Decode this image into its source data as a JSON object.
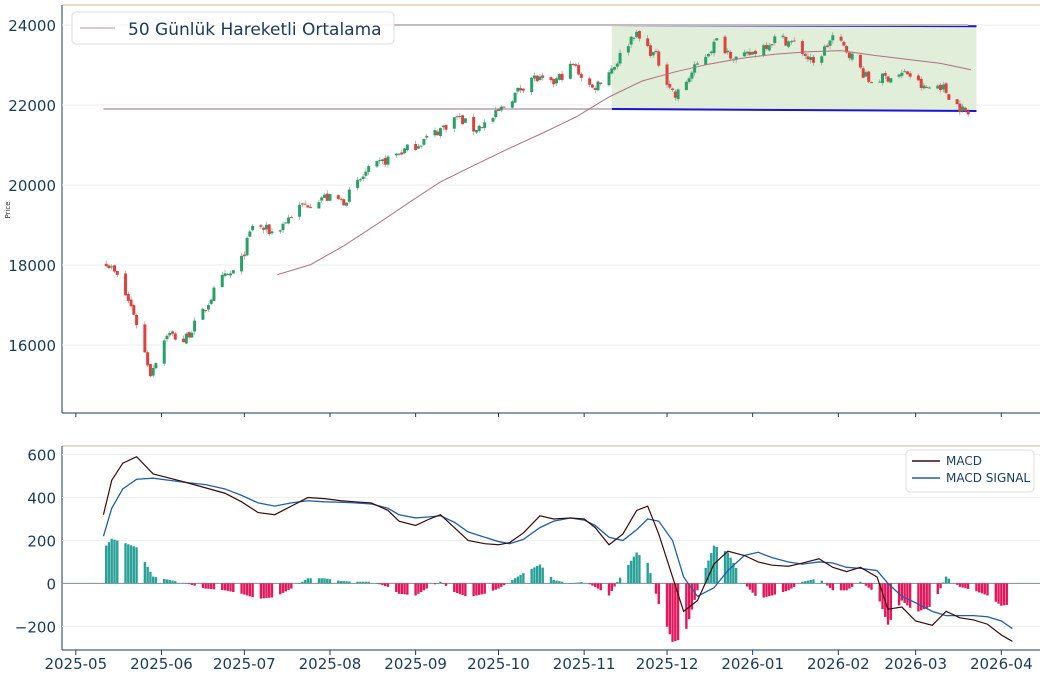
{
  "chart_data": [
    {
      "type": "candlestick",
      "ylabel": "Price",
      "ylim": [
        14300,
        24500
      ],
      "yticks": [
        16000,
        18000,
        20000,
        22000,
        24000
      ],
      "legend": {
        "placement": "top-left",
        "entries": [
          "50 Günlük Hareketli Ortalama"
        ]
      },
      "colors": {
        "up": "#26a269",
        "down": "#e0403e",
        "ma": "#b07080",
        "hlines": "#c9b8be",
        "channel": "#1a14d6",
        "channel_fill": "#dcebd3"
      },
      "series": [
        {
          "name": "50 Günlük Hareketli Ortalama",
          "role": "moving-average",
          "points": [
            [
              "2025-07-13",
              17760
            ],
            [
              "2025-07-25",
              18010
            ],
            [
              "2025-08-06",
              18480
            ],
            [
              "2025-08-18",
              19020
            ],
            [
              "2025-08-30",
              19580
            ],
            [
              "2025-09-10",
              20080
            ],
            [
              "2025-09-23",
              20520
            ],
            [
              "2025-10-05",
              20920
            ],
            [
              "2025-10-17",
              21300
            ],
            [
              "2025-10-29",
              21700
            ],
            [
              "2025-11-10",
              22200
            ],
            [
              "2025-11-22",
              22600
            ],
            [
              "2025-12-04",
              22830
            ],
            [
              "2025-12-16",
              23020
            ],
            [
              "2025-12-28",
              23170
            ],
            [
              "2026-01-09",
              23270
            ],
            [
              "2026-01-21",
              23330
            ],
            [
              "2026-02-02",
              23360
            ],
            [
              "2026-02-14",
              23240
            ],
            [
              "2026-02-26",
              23140
            ],
            [
              "2026-03-10",
              23040
            ],
            [
              "2026-03-21",
              22880
            ]
          ]
        },
        {
          "name": "horizontal-level-upper",
          "role": "hline",
          "y": 24000,
          "x_range": [
            "2025-05-11",
            "2026-03-20"
          ]
        },
        {
          "name": "horizontal-level-lower",
          "role": "hline",
          "y": 21900,
          "x_range": [
            "2025-05-11",
            "2025-11-11"
          ]
        }
      ],
      "channel": {
        "x_range": [
          "2025-11-11",
          "2026-03-23"
        ],
        "upper": [
          24000,
          23970
        ],
        "lower": [
          21900,
          21850
        ]
      },
      "anchors": [
        [
          "2025-05-11",
          18200
        ],
        [
          "2025-05-16",
          17700
        ],
        [
          "2025-05-22",
          16800
        ],
        [
          "2025-05-28",
          15300
        ],
        [
          "2025-06-03",
          16300
        ],
        [
          "2025-06-09",
          16100
        ],
        [
          "2025-06-16",
          16800
        ],
        [
          "2025-06-22",
          17600
        ],
        [
          "2025-06-29",
          17900
        ],
        [
          "2025-07-04",
          19000
        ],
        [
          "2025-07-12",
          18800
        ],
        [
          "2025-07-20",
          19400
        ],
        [
          "2025-07-29",
          19700
        ],
        [
          "2025-08-06",
          19600
        ],
        [
          "2025-08-14",
          20300
        ],
        [
          "2025-08-23",
          20700
        ],
        [
          "2025-09-01",
          21000
        ],
        [
          "2025-09-08",
          21300
        ],
        [
          "2025-09-16",
          21700
        ],
        [
          "2025-09-22",
          21400
        ],
        [
          "2025-09-28",
          21600
        ],
        [
          "2025-10-06",
          22200
        ],
        [
          "2025-10-13",
          22700
        ],
        [
          "2025-10-20",
          22500
        ],
        [
          "2025-10-28",
          23000
        ],
        [
          "2025-11-04",
          22400
        ],
        [
          "2025-11-12",
          23000
        ],
        [
          "2025-11-19",
          23800
        ],
        [
          "2025-11-27",
          23200
        ],
        [
          "2025-12-04",
          22200
        ],
        [
          "2025-12-12",
          23000
        ],
        [
          "2025-12-19",
          23600
        ],
        [
          "2025-12-27",
          23100
        ],
        [
          "2026-01-03",
          23400
        ],
        [
          "2026-01-10",
          23700
        ],
        [
          "2026-01-17",
          23500
        ],
        [
          "2026-01-23",
          23000
        ],
        [
          "2026-01-30",
          23700
        ],
        [
          "2026-02-05",
          23300
        ],
        [
          "2026-02-12",
          22600
        ],
        [
          "2026-02-19",
          22700
        ],
        [
          "2026-02-26",
          22800
        ],
        [
          "2026-03-04",
          22400
        ],
        [
          "2026-03-10",
          22500
        ],
        [
          "2026-03-16",
          22000
        ],
        [
          "2026-03-21",
          21700
        ]
      ]
    },
    {
      "type": "line",
      "ylim": [
        -310,
        640
      ],
      "yticks": [
        -200,
        0,
        200,
        400,
        600
      ],
      "xticks": [
        "2025-05",
        "2025-06",
        "2025-07",
        "2025-08",
        "2025-09",
        "2025-10",
        "2025-11",
        "2025-12",
        "2026-01",
        "2026-02",
        "2026-03",
        "2026-04"
      ],
      "legend": {
        "placement": "top-right",
        "entries": [
          "MACD",
          "MACD SIGNAL"
        ]
      },
      "colors": {
        "macd": "#3a0a08",
        "signal": "#1f5fae",
        "hist_pos": "#2aa198",
        "hist_neg": "#e0185c",
        "zero": "#7f8c8d"
      },
      "series": [
        {
          "name": "MACD",
          "points": [
            [
              "2025-05-11",
              320
            ],
            [
              "2025-05-14",
              480
            ],
            [
              "2025-05-18",
              560
            ],
            [
              "2025-05-23",
              590
            ],
            [
              "2025-05-29",
              510
            ],
            [
              "2025-06-04",
              490
            ],
            [
              "2025-06-10",
              470
            ],
            [
              "2025-06-17",
              445
            ],
            [
              "2025-06-24",
              420
            ],
            [
              "2025-06-30",
              380
            ],
            [
              "2025-07-06",
              330
            ],
            [
              "2025-07-12",
              320
            ],
            [
              "2025-07-18",
              360
            ],
            [
              "2025-07-24",
              400
            ],
            [
              "2025-07-30",
              395
            ],
            [
              "2025-08-05",
              385
            ],
            [
              "2025-08-10",
              380
            ],
            [
              "2025-08-16",
              375
            ],
            [
              "2025-08-22",
              340
            ],
            [
              "2025-08-26",
              290
            ],
            [
              "2025-09-01",
              270
            ],
            [
              "2025-09-06",
              300
            ],
            [
              "2025-09-10",
              320
            ],
            [
              "2025-09-15",
              260
            ],
            [
              "2025-09-20",
              200
            ],
            [
              "2025-09-26",
              185
            ],
            [
              "2025-10-01",
              180
            ],
            [
              "2025-10-05",
              190
            ],
            [
              "2025-10-10",
              235
            ],
            [
              "2025-10-16",
              315
            ],
            [
              "2025-10-21",
              300
            ],
            [
              "2025-10-27",
              305
            ],
            [
              "2025-11-01",
              300
            ],
            [
              "2025-11-05",
              260
            ],
            [
              "2025-11-10",
              180
            ],
            [
              "2025-11-15",
              230
            ],
            [
              "2025-11-20",
              340
            ],
            [
              "2025-11-24",
              360
            ],
            [
              "2025-11-28",
              230
            ],
            [
              "2025-12-03",
              30
            ],
            [
              "2025-12-07",
              -130
            ],
            [
              "2025-12-12",
              -80
            ],
            [
              "2025-12-18",
              90
            ],
            [
              "2025-12-23",
              150
            ],
            [
              "2025-12-29",
              130
            ],
            [
              "2026-01-03",
              100
            ],
            [
              "2026-01-08",
              85
            ],
            [
              "2026-01-14",
              80
            ],
            [
              "2026-01-19",
              95
            ],
            [
              "2026-01-25",
              115
            ],
            [
              "2026-01-30",
              75
            ],
            [
              "2026-02-04",
              55
            ],
            [
              "2026-02-09",
              75
            ],
            [
              "2026-02-15",
              30
            ],
            [
              "2026-02-19",
              -120
            ],
            [
              "2026-02-24",
              -110
            ],
            [
              "2026-03-01",
              -175
            ],
            [
              "2026-03-07",
              -195
            ],
            [
              "2026-03-12",
              -130
            ],
            [
              "2026-03-17",
              -160
            ],
            [
              "2026-03-22",
              -170
            ],
            [
              "2026-03-27",
              -190
            ],
            [
              "2026-04-01",
              -240
            ],
            [
              "2026-04-05",
              -270
            ]
          ]
        },
        {
          "name": "MACD SIGNAL",
          "points": [
            [
              "2025-05-11",
              220
            ],
            [
              "2025-05-14",
              350
            ],
            [
              "2025-05-18",
              440
            ],
            [
              "2025-05-23",
              485
            ],
            [
              "2025-05-29",
              490
            ],
            [
              "2025-06-04",
              480
            ],
            [
              "2025-06-10",
              470
            ],
            [
              "2025-06-17",
              460
            ],
            [
              "2025-06-24",
              440
            ],
            [
              "2025-06-30",
              410
            ],
            [
              "2025-07-06",
              375
            ],
            [
              "2025-07-12",
              360
            ],
            [
              "2025-07-18",
              375
            ],
            [
              "2025-07-24",
              385
            ],
            [
              "2025-07-30",
              380
            ],
            [
              "2025-08-05",
              378
            ],
            [
              "2025-08-10",
              375
            ],
            [
              "2025-08-16",
              370
            ],
            [
              "2025-08-22",
              350
            ],
            [
              "2025-08-26",
              320
            ],
            [
              "2025-09-01",
              305
            ],
            [
              "2025-09-06",
              310
            ],
            [
              "2025-09-10",
              315
            ],
            [
              "2025-09-15",
              285
            ],
            [
              "2025-09-20",
              240
            ],
            [
              "2025-09-26",
              215
            ],
            [
              "2025-10-01",
              195
            ],
            [
              "2025-10-05",
              185
            ],
            [
              "2025-10-10",
              205
            ],
            [
              "2025-10-16",
              260
            ],
            [
              "2025-10-21",
              290
            ],
            [
              "2025-10-27",
              305
            ],
            [
              "2025-11-01",
              295
            ],
            [
              "2025-11-05",
              270
            ],
            [
              "2025-11-10",
              215
            ],
            [
              "2025-11-15",
              200
            ],
            [
              "2025-11-20",
              250
            ],
            [
              "2025-11-24",
              300
            ],
            [
              "2025-11-28",
              290
            ],
            [
              "2025-12-03",
              200
            ],
            [
              "2025-12-07",
              30
            ],
            [
              "2025-12-12",
              -60
            ],
            [
              "2025-12-18",
              -20
            ],
            [
              "2025-12-23",
              60
            ],
            [
              "2025-12-29",
              130
            ],
            [
              "2026-01-03",
              145
            ],
            [
              "2026-01-08",
              120
            ],
            [
              "2026-01-14",
              100
            ],
            [
              "2026-01-19",
              90
            ],
            [
              "2026-01-25",
              100
            ],
            [
              "2026-01-30",
              95
            ],
            [
              "2026-02-04",
              75
            ],
            [
              "2026-02-09",
              70
            ],
            [
              "2026-02-15",
              60
            ],
            [
              "2026-02-19",
              0
            ],
            [
              "2026-02-24",
              -60
            ],
            [
              "2026-03-01",
              -90
            ],
            [
              "2026-03-07",
              -130
            ],
            [
              "2026-03-12",
              -150
            ],
            [
              "2026-03-17",
              -150
            ],
            [
              "2026-03-22",
              -150
            ],
            [
              "2026-03-27",
              -155
            ],
            [
              "2026-04-01",
              -175
            ],
            [
              "2026-04-05",
              -210
            ]
          ]
        }
      ]
    }
  ]
}
